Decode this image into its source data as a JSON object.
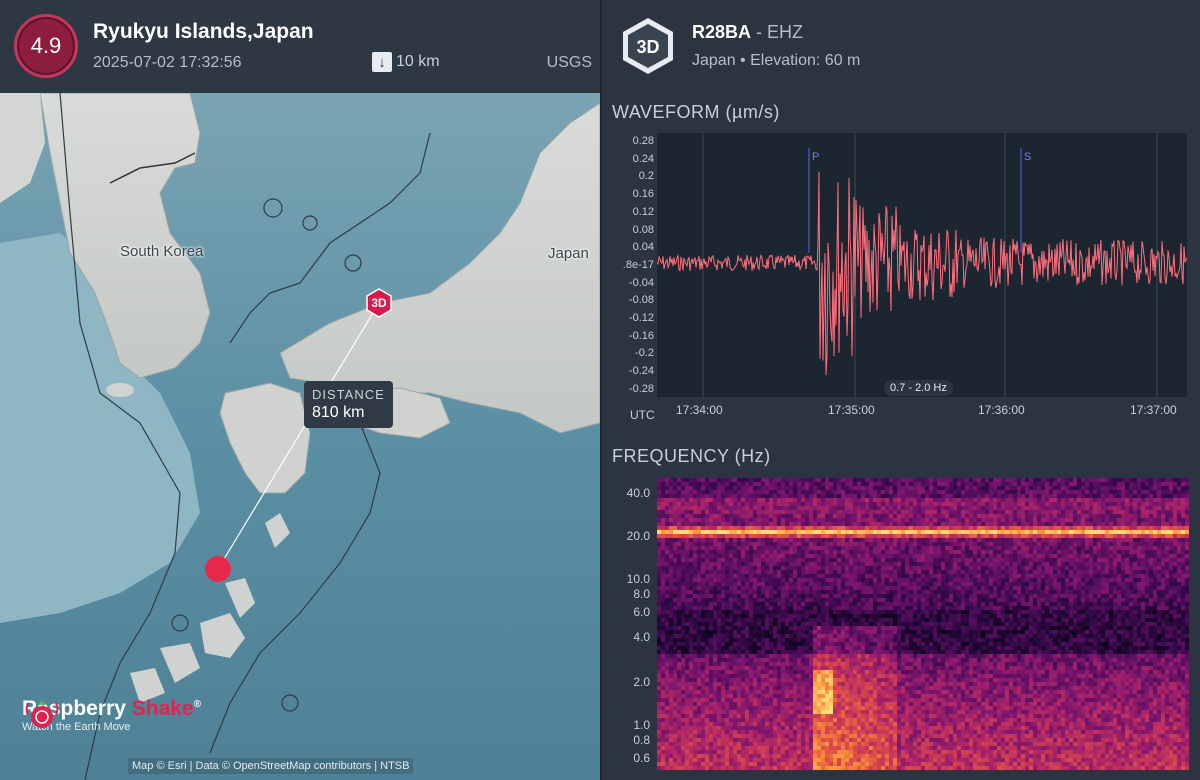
{
  "event": {
    "magnitude": "4.9",
    "title": "Ryukyu Islands,Japan",
    "datetime": "2025-07-02 17:32:56",
    "depth": "10 km",
    "source": "USGS"
  },
  "map": {
    "labels": {
      "south_korea": "South Korea",
      "japan": "Japan"
    },
    "station_marker": "3D",
    "distance_label": "DISTANCE",
    "distance_value": "810 km",
    "brand_name_1": "Raspberry",
    "brand_name_2": "Shake",
    "brand_reg": "®",
    "brand_tagline": "Watch the Earth Move",
    "attribution": "Map © Esri | Data © OpenStreetMap contributors | NTSB",
    "epicenter_color": "#e8294c",
    "marker_color": "#d81b4d"
  },
  "station": {
    "badge": "3D",
    "code": "R28BA",
    "separator": " - ",
    "channel": "EHZ",
    "location": "Japan • Elevation: 60 m"
  },
  "waveform": {
    "title": "WAVEFORM (µm/s)",
    "yticks": [
      "0.28",
      "0.24",
      "0.2",
      "0.16",
      "0.12",
      "0.08",
      "0.04",
      ".8e-17",
      "-0.04",
      "-0.08",
      "-0.12",
      "-0.16",
      "-0.2",
      "-0.24",
      "-0.28"
    ],
    "xlabel": "UTC",
    "xticks": [
      "17:34:00",
      "17:35:00",
      "17:36:00",
      "17:37:00"
    ],
    "phases": [
      "P",
      "S"
    ],
    "filter": "0.7 - 2.0 Hz",
    "trace_color": "#ff6f7d"
  },
  "frequency": {
    "title": "FREQUENCY (Hz)",
    "yticks": [
      "40.0",
      "20.0",
      "10.0",
      "8.0",
      "6.0",
      "4.0",
      "2.0",
      "1.0",
      "0.8",
      "0.6"
    ]
  }
}
